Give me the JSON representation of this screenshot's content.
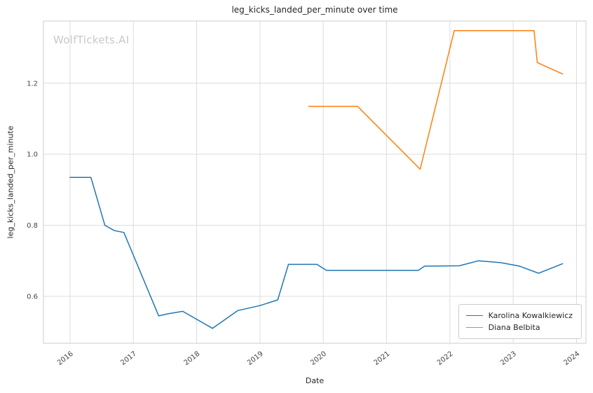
{
  "watermark": "WolfTickets.AI",
  "chart_data": {
    "type": "line",
    "title": "leg_kicks_landed_per_minute over time",
    "xlabel": "Date",
    "ylabel": "leg_kicks_landed_per_minute",
    "x_range": [
      2015.58,
      2024.15
    ],
    "y_range": [
      0.468,
      1.375
    ],
    "x_ticks": [
      "2016",
      "2017",
      "2018",
      "2019",
      "2020",
      "2021",
      "2022",
      "2023",
      "2024"
    ],
    "x_tick_values": [
      2016,
      2017,
      2018,
      2019,
      2020,
      2021,
      2022,
      2023,
      2024
    ],
    "y_ticks": [
      "0.6",
      "0.8",
      "1.0",
      "1.2"
    ],
    "y_tick_values": [
      0.6,
      0.8,
      1.0,
      1.2
    ],
    "grid": true,
    "legend_position": "lower right",
    "series": [
      {
        "name": "Karolina Kowalkiewicz",
        "color": "#1f77b4",
        "points": [
          [
            2016.0,
            0.935
          ],
          [
            2016.33,
            0.935
          ],
          [
            2016.55,
            0.8
          ],
          [
            2016.7,
            0.785
          ],
          [
            2016.85,
            0.78
          ],
          [
            2017.4,
            0.545
          ],
          [
            2017.55,
            0.551
          ],
          [
            2017.78,
            0.558
          ],
          [
            2018.25,
            0.51
          ],
          [
            2018.65,
            0.56
          ],
          [
            2019.0,
            0.574
          ],
          [
            2019.28,
            0.59
          ],
          [
            2019.45,
            0.69
          ],
          [
            2019.9,
            0.69
          ],
          [
            2020.05,
            0.673
          ],
          [
            2021.5,
            0.673
          ],
          [
            2021.6,
            0.685
          ],
          [
            2022.15,
            0.686
          ],
          [
            2022.45,
            0.7
          ],
          [
            2022.8,
            0.695
          ],
          [
            2023.1,
            0.685
          ],
          [
            2023.4,
            0.665
          ],
          [
            2023.78,
            0.692
          ]
        ]
      },
      {
        "name": "Diana Belbita",
        "color": "#ff7f0e",
        "points": [
          [
            2019.77,
            1.135
          ],
          [
            2020.54,
            1.135
          ],
          [
            2021.53,
            0.958
          ],
          [
            2022.07,
            1.348
          ],
          [
            2023.33,
            1.348
          ],
          [
            2023.38,
            1.258
          ],
          [
            2023.78,
            1.226
          ]
        ]
      }
    ]
  }
}
